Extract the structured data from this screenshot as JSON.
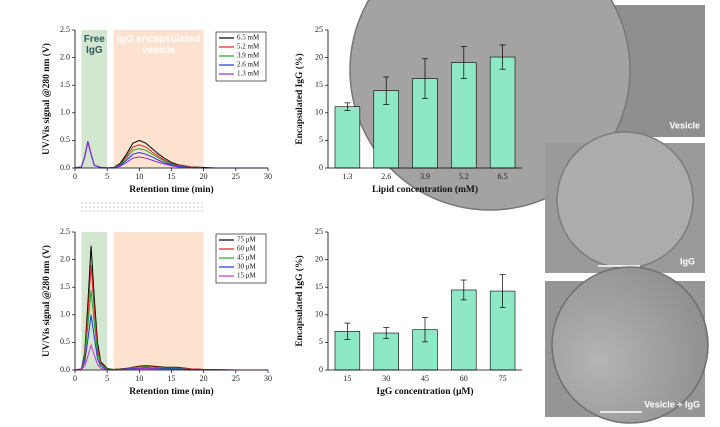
{
  "chart_data": [
    {
      "type": "line",
      "x_label": "Retention time (min)",
      "y_label": "UV/Vis signal @280 nm (V)",
      "xlim": [
        0,
        30
      ],
      "xticks": [
        0,
        5,
        10,
        15,
        20,
        25,
        30
      ],
      "ylim": [
        0,
        2.5
      ],
      "yticks": [
        {
          "value": 0,
          "label": "0.0"
        },
        0.5,
        {
          "value": 1,
          "label": "1.0"
        },
        1.5,
        {
          "value": 2,
          "label": "2.0"
        },
        2.5
      ],
      "legend": "upper right",
      "regions": [
        {
          "label": "Free IgG",
          "x": [
            1,
            5
          ],
          "color": "#d3e6d0",
          "text_color": "#2d5a5a"
        },
        {
          "label": "IgG encapsulated vesicle",
          "x": [
            6,
            20
          ],
          "color": "#fde2cf",
          "text_color": "#ffffff"
        }
      ],
      "x": [
        0,
        1,
        1.5,
        2,
        2.5,
        3,
        4,
        5,
        6,
        7,
        8,
        9,
        10,
        11,
        12,
        13,
        14,
        15,
        16,
        18,
        20,
        22,
        25,
        30
      ],
      "series": [
        {
          "name": "6.5 mM",
          "color": "#000000",
          "values": [
            0,
            0.02,
            0.2,
            0.48,
            0.25,
            0.05,
            0.01,
            0,
            0.01,
            0.08,
            0.25,
            0.45,
            0.5,
            0.45,
            0.35,
            0.25,
            0.17,
            0.1,
            0.06,
            0.02,
            0.01,
            0,
            0,
            0
          ]
        },
        {
          "name": "5.2 mM",
          "color": "#e02020",
          "values": [
            0,
            0.02,
            0.2,
            0.48,
            0.25,
            0.05,
            0.01,
            0,
            0.01,
            0.06,
            0.21,
            0.38,
            0.42,
            0.38,
            0.29,
            0.21,
            0.14,
            0.08,
            0.05,
            0.02,
            0,
            0,
            0,
            0
          ]
        },
        {
          "name": "3.9 mM",
          "color": "#22aa22",
          "values": [
            0,
            0.02,
            0.2,
            0.48,
            0.25,
            0.05,
            0.01,
            0,
            0.01,
            0.05,
            0.18,
            0.32,
            0.35,
            0.32,
            0.25,
            0.18,
            0.12,
            0.07,
            0.04,
            0.01,
            0,
            0,
            0,
            0
          ]
        },
        {
          "name": "2.6 mM",
          "color": "#2233dd",
          "values": [
            0,
            0.02,
            0.2,
            0.48,
            0.25,
            0.05,
            0.01,
            0,
            0,
            0.04,
            0.14,
            0.25,
            0.28,
            0.25,
            0.2,
            0.14,
            0.09,
            0.06,
            0.03,
            0.01,
            0,
            0,
            0,
            0
          ]
        },
        {
          "name": "1.3 mM",
          "color": "#8a2be2",
          "values": [
            0,
            0.02,
            0.2,
            0.48,
            0.25,
            0.05,
            0.01,
            0,
            0,
            0.03,
            0.1,
            0.18,
            0.2,
            0.18,
            0.14,
            0.1,
            0.07,
            0.04,
            0.02,
            0.01,
            0,
            0,
            0,
            0
          ]
        }
      ]
    },
    {
      "type": "bar",
      "x_label": "Lipid concentration (mM)",
      "y_label": "Encapsulated IgG (%)",
      "categories": [
        "1.3",
        "2.6",
        "3.9",
        "5.2",
        "6.5"
      ],
      "values": [
        11.1,
        14,
        16.2,
        19.1,
        20.1
      ],
      "errors": [
        0.7,
        2.5,
        3.6,
        2.9,
        2.2
      ],
      "color": "#8ee8c6",
      "ylim": [
        0,
        25
      ],
      "yticks": [
        0,
        5,
        10,
        15,
        20,
        25
      ]
    },
    {
      "type": "line",
      "x_label": "Retention time (min)",
      "y_label": "UV/Vis signal @280 nm (V)",
      "xlim": [
        0,
        30
      ],
      "xticks": [
        0,
        5,
        10,
        15,
        20,
        25,
        30
      ],
      "ylim": [
        0,
        2.5
      ],
      "yticks": [
        {
          "value": 0,
          "label": "0.0"
        },
        0.5,
        {
          "value": 1,
          "label": "1.0"
        },
        1.5,
        {
          "value": 2,
          "label": "2.0"
        },
        2.5
      ],
      "legend": "upper right",
      "regions": [
        {
          "x": [
            1,
            5
          ],
          "color": "#d3e6d0"
        },
        {
          "x": [
            6,
            20
          ],
          "color": "#fde2cf"
        }
      ],
      "x": [
        0,
        1,
        1.5,
        2,
        2.5,
        3,
        3.5,
        4,
        5,
        6,
        8,
        10,
        11,
        12,
        14,
        16,
        18,
        20,
        25,
        30
      ],
      "series": [
        {
          "name": "75 μM",
          "color": "#000000",
          "values": [
            0,
            0.02,
            0.3,
            1.2,
            2.25,
            1.3,
            0.5,
            0.15,
            0.03,
            0.01,
            0.03,
            0.07,
            0.08,
            0.07,
            0.05,
            0.05,
            0.02,
            0.01,
            0,
            0
          ]
        },
        {
          "name": "60 μM",
          "color": "#e02020",
          "values": [
            0,
            0.02,
            0.25,
            1.0,
            1.9,
            1.1,
            0.4,
            0.12,
            0.02,
            0.01,
            0.03,
            0.06,
            0.07,
            0.06,
            0.04,
            0.04,
            0.02,
            0.01,
            0,
            0
          ]
        },
        {
          "name": "45 μM",
          "color": "#22aa22",
          "values": [
            0,
            0.01,
            0.2,
            0.8,
            1.45,
            0.85,
            0.3,
            0.1,
            0.02,
            0.01,
            0.02,
            0.05,
            0.06,
            0.05,
            0.03,
            0.03,
            0.01,
            0,
            0,
            0
          ]
        },
        {
          "name": "30 μM",
          "color": "#2233dd",
          "values": [
            0,
            0.01,
            0.14,
            0.55,
            1.0,
            0.6,
            0.2,
            0.07,
            0.01,
            0,
            0.02,
            0.03,
            0.04,
            0.03,
            0.02,
            0.02,
            0.01,
            0,
            0,
            0
          ]
        },
        {
          "name": "15 μM",
          "color": "#cc33cc",
          "values": [
            0,
            0.01,
            0.07,
            0.25,
            0.45,
            0.27,
            0.1,
            0.03,
            0.01,
            0,
            0.01,
            0.02,
            0.02,
            0.02,
            0.01,
            0.01,
            0,
            0,
            0,
            0
          ]
        }
      ]
    },
    {
      "type": "bar",
      "x_label": "IgG concentration (μM)",
      "y_label": "Encapsulated IgG (%)",
      "categories": [
        "15",
        "30",
        "45",
        "60",
        "75"
      ],
      "values": [
        7,
        6.7,
        7.3,
        14.5,
        14.3
      ],
      "errors": [
        1.5,
        1,
        2.2,
        1.8,
        3
      ],
      "color": "#8ee8c6",
      "ylim": [
        0,
        25
      ],
      "yticks": [
        0,
        5,
        10,
        15,
        20,
        25
      ]
    }
  ],
  "images": [
    {
      "label": "Vesicle"
    },
    {
      "label": "IgG"
    },
    {
      "label": "Vesicle + IgG"
    }
  ]
}
